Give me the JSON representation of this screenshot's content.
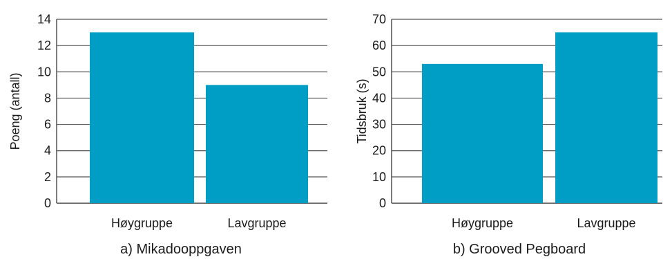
{
  "chart_data": [
    {
      "type": "bar",
      "caption": "a) Mikadooppgaven",
      "ylabel": "Poeng (antall)",
      "categories": [
        "Høygruppe",
        "Lavgruppe"
      ],
      "values": [
        13,
        9
      ],
      "ylim": [
        0,
        14
      ],
      "yticks": [
        0,
        2,
        4,
        6,
        8,
        10,
        12,
        14
      ],
      "grid": true,
      "bar_color": "#009ec4"
    },
    {
      "type": "bar",
      "caption": "b) Grooved Pegboard",
      "ylabel": "Tidsbruk (s)",
      "categories": [
        "Høygruppe",
        "Lavgruppe"
      ],
      "values": [
        53,
        65
      ],
      "ylim": [
        0,
        70
      ],
      "yticks": [
        0,
        10,
        20,
        30,
        40,
        50,
        60,
        70
      ],
      "grid": true,
      "bar_color": "#009ec4"
    }
  ]
}
